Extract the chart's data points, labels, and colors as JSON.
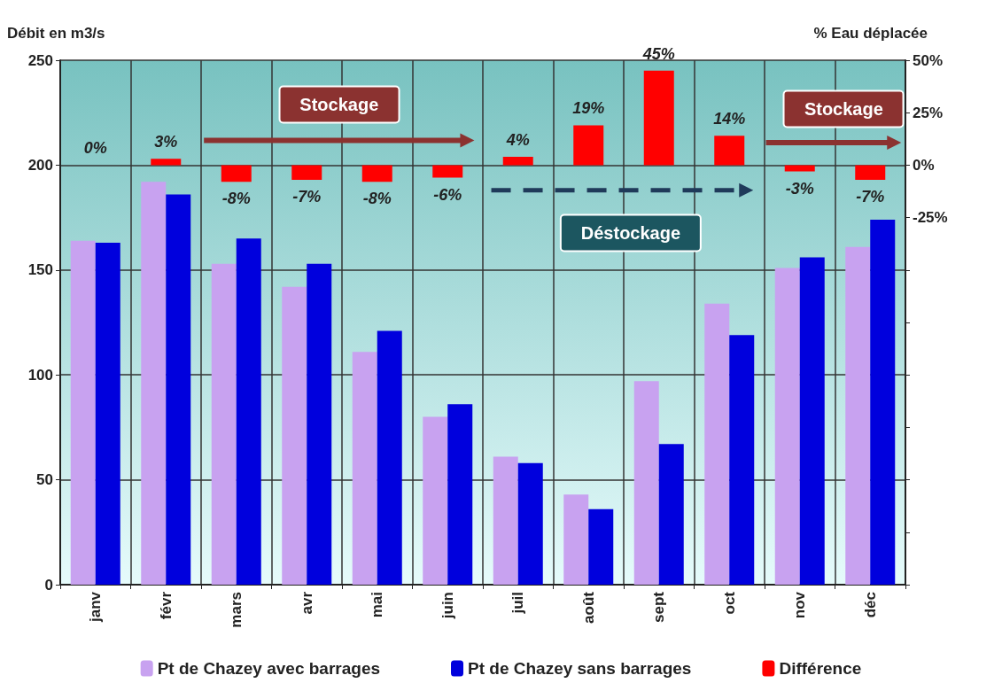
{
  "chart_data": {
    "type": "bar",
    "ylabel": "Débit en m3/s",
    "y2label": "% Eau déplacée",
    "categories": [
      "janv",
      "févr",
      "mars",
      "avr",
      "mai",
      "juin",
      "juil",
      "août",
      "sept",
      "oct",
      "nov",
      "déc"
    ],
    "series": [
      {
        "name": "Pt de Chazey avec barrages",
        "color": "#c8a2f0",
        "values": [
          164,
          192,
          153,
          142,
          111,
          80,
          61,
          43,
          97,
          134,
          151,
          161
        ]
      },
      {
        "name": "Pt de Chazey sans barrages",
        "color": "#0000dd",
        "values": [
          163,
          186,
          165,
          153,
          121,
          86,
          58,
          36,
          67,
          119,
          156,
          174
        ]
      },
      {
        "name": "Différence",
        "color": "#ff0000",
        "axis": "y2",
        "values": [
          0,
          3,
          -8,
          -7,
          -8,
          -6,
          4,
          19,
          45,
          14,
          -3,
          -7
        ],
        "value_labels": [
          "0%",
          "3%",
          "-8%",
          "-7%",
          "-8%",
          "-6%",
          "4%",
          "19%",
          "45%",
          "14%",
          "-3%",
          "-7%"
        ]
      }
    ],
    "ylim": [
      0,
      250
    ],
    "yticks": [
      0,
      50,
      100,
      150,
      200,
      250
    ],
    "y2lim": [
      -200,
      50
    ],
    "y2ticks": [
      {
        "value": 50,
        "label": "50%"
      },
      {
        "value": 25,
        "label": "25%"
      },
      {
        "value": 0,
        "label": "0%"
      },
      {
        "value": -25,
        "label": "-25%"
      },
      {
        "value": -50,
        "label": null
      },
      {
        "value": -75,
        "label": null
      },
      {
        "value": -100,
        "label": null
      },
      {
        "value": -125,
        "label": null
      },
      {
        "value": -150,
        "label": null
      },
      {
        "value": -175,
        "label": null
      },
      {
        "value": -200,
        "label": null
      }
    ],
    "annotations": [
      "Stockage",
      "Déstockage",
      "Stockage"
    ],
    "grid": true,
    "legend": "bottom"
  }
}
